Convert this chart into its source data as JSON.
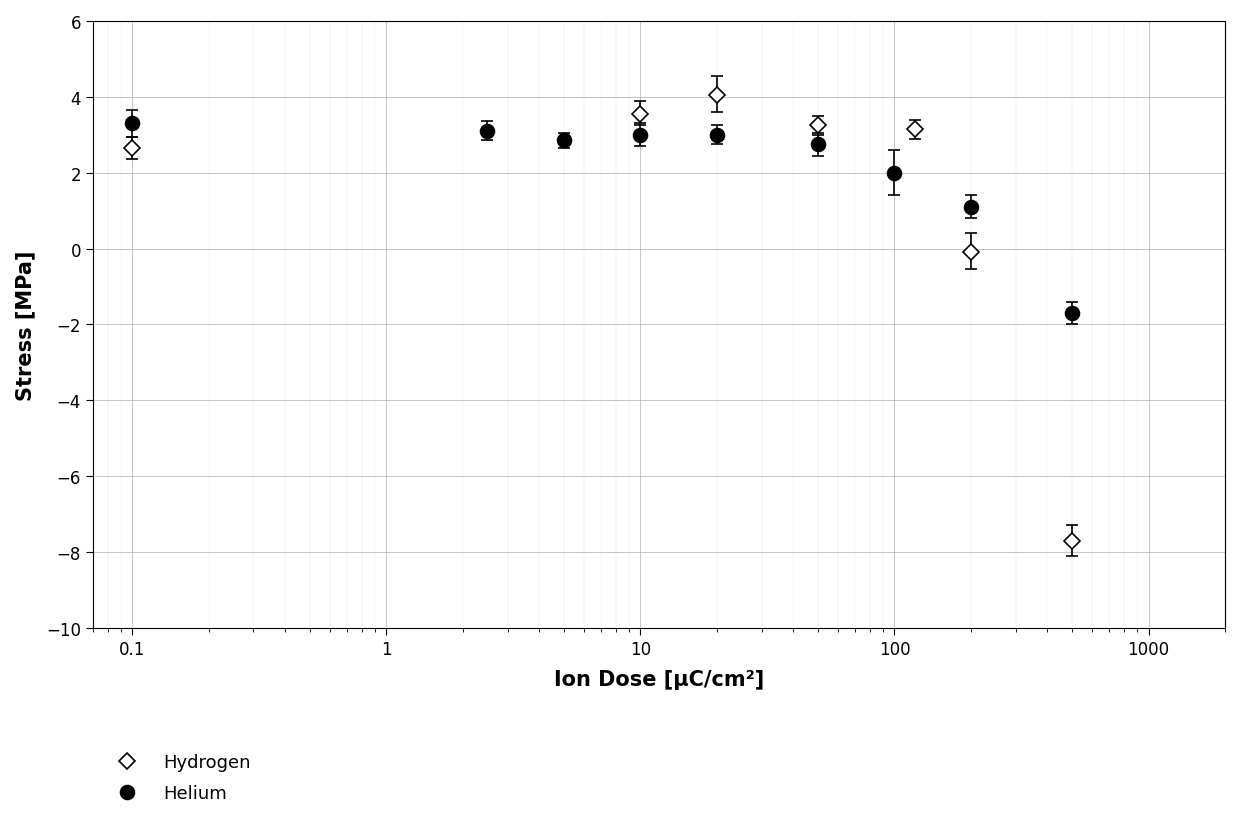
{
  "title": "",
  "xlabel": "Ion Dose [μC/cm²]",
  "ylabel": "Stress [MPa]",
  "xlim": [
    0.07,
    2000
  ],
  "ylim": [
    -10,
    6
  ],
  "yticks": [
    -10,
    -8,
    -6,
    -4,
    -2,
    0,
    2,
    4,
    6
  ],
  "background_color": "#ffffff",
  "hydrogen": {
    "x": [
      0.1,
      10.0,
      20.0,
      50.0,
      120.0,
      200.0,
      500.0
    ],
    "y": [
      2.65,
      3.55,
      4.05,
      3.25,
      3.15,
      -0.1,
      -7.7
    ],
    "yerr_lo": [
      0.3,
      0.3,
      0.45,
      0.25,
      0.25,
      0.45,
      0.4
    ],
    "yerr_hi": [
      0.3,
      0.35,
      0.5,
      0.25,
      0.25,
      0.5,
      0.4
    ],
    "label": "Hydrogen"
  },
  "helium": {
    "x": [
      0.1,
      2.5,
      5.0,
      10.0,
      20.0,
      50.0,
      100.0,
      200.0,
      500.0
    ],
    "y": [
      3.3,
      3.1,
      2.85,
      3.0,
      3.0,
      2.75,
      2.0,
      1.1,
      -1.7
    ],
    "yerr_lo": [
      0.35,
      0.25,
      0.2,
      0.3,
      0.25,
      0.3,
      0.6,
      0.3,
      0.3
    ],
    "yerr_hi": [
      0.35,
      0.25,
      0.2,
      0.3,
      0.25,
      0.3,
      0.6,
      0.3,
      0.3
    ],
    "label": "Helium"
  }
}
